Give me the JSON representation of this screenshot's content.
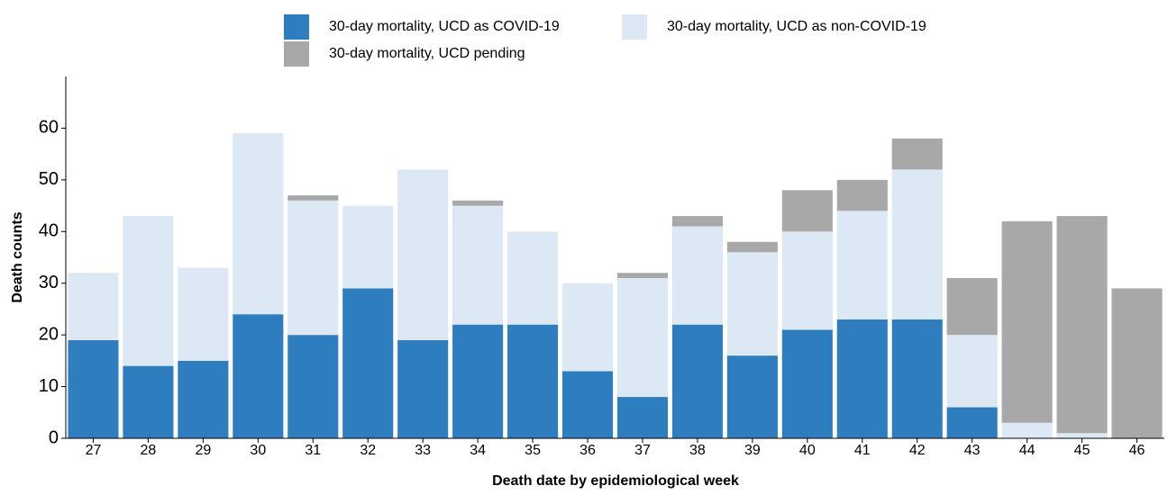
{
  "chart_data": {
    "type": "stacked_bar",
    "x_label": "Death date by epidemiological week",
    "y_label": "Death counts",
    "categories": [
      "27",
      "28",
      "29",
      "30",
      "31",
      "32",
      "33",
      "34",
      "35",
      "36",
      "37",
      "38",
      "39",
      "40",
      "41",
      "42",
      "43",
      "44",
      "45",
      "46"
    ],
    "series": [
      {
        "name": "30-day mortality, UCD as COVID-19",
        "color": "#2e7ebf",
        "values": [
          19,
          14,
          15,
          24,
          20,
          29,
          19,
          22,
          22,
          13,
          8,
          22,
          16,
          21,
          23,
          23,
          6,
          0,
          0,
          0
        ]
      },
      {
        "name": "30-day mortality, UCD as non-COVID-19",
        "color": "#dde8f5",
        "values": [
          13,
          29,
          18,
          35,
          26,
          16,
          33,
          23,
          18,
          17,
          23,
          19,
          20,
          19,
          21,
          29,
          14,
          3,
          1,
          0
        ]
      },
      {
        "name": "30-day mortality, UCD pending",
        "color": "#a8a8a8",
        "values": [
          0,
          0,
          0,
          0,
          1,
          0,
          0,
          1,
          0,
          0,
          1,
          2,
          2,
          8,
          6,
          6,
          11,
          39,
          42,
          29
        ]
      }
    ],
    "ylim": [
      0,
      70
    ],
    "yticks": [
      0,
      10,
      20,
      30,
      40,
      50,
      60
    ],
    "grid": false
  }
}
